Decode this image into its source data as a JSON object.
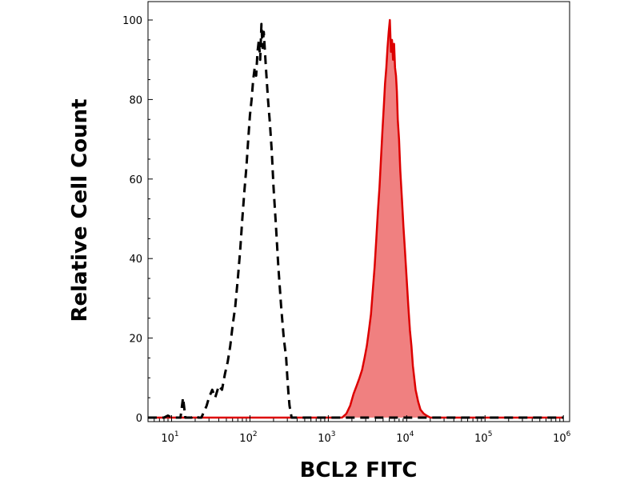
{
  "chart_data": {
    "type": "area",
    "title": "",
    "xlabel": "BCL2  FITC",
    "ylabel": "Relative Cell Count",
    "xscale": "log",
    "xlim": [
      5,
      1200000
    ],
    "ylim": [
      0,
      100
    ],
    "grid": false,
    "x_ticks": [
      {
        "base": "10",
        "exp": "1",
        "value": 10
      },
      {
        "base": "10",
        "exp": "2",
        "value": 100
      },
      {
        "base": "10",
        "exp": "3",
        "value": 1000
      },
      {
        "base": "10",
        "exp": "4",
        "value": 10000
      },
      {
        "base": "10",
        "exp": "5",
        "value": 100000
      },
      {
        "base": "10",
        "exp": "6",
        "value": 1000000
      }
    ],
    "y_ticks": [
      "0",
      "20",
      "40",
      "60",
      "80",
      "100"
    ],
    "series": [
      {
        "style": "dashed",
        "color": "#000000",
        "fill": "none",
        "x": [
          5,
          8,
          9,
          10,
          13,
          14,
          15,
          18,
          20,
          22,
          24,
          26,
          28,
          30,
          33,
          36,
          40,
          44,
          48,
          52,
          56,
          60,
          65,
          70,
          75,
          80,
          85,
          90,
          95,
          100,
          105,
          110,
          115,
          120,
          125,
          130,
          135,
          140,
          145,
          150,
          160,
          170,
          180,
          190,
          200,
          215,
          230,
          250,
          270,
          290,
          300,
          310,
          320,
          330,
          340,
          360,
          400,
          1000000
        ],
        "y": [
          0,
          0,
          0.5,
          0,
          0,
          5,
          0,
          0,
          0.5,
          0,
          0,
          1.5,
          3,
          5,
          7,
          5,
          8,
          7,
          11,
          14,
          18,
          23,
          28,
          35,
          42,
          50,
          57,
          63,
          70,
          76,
          80,
          85,
          88,
          86,
          92,
          95,
          90,
          99,
          93,
          97,
          88,
          80,
          74,
          67,
          58,
          48,
          38,
          28,
          20,
          15,
          10,
          6,
          3,
          1.5,
          0,
          0,
          0,
          0
        ]
      },
      {
        "style": "solid",
        "color": "#dd0000",
        "fill": "#f08080",
        "x": [
          5,
          1500,
          1700,
          1900,
          2100,
          2300,
          2500,
          2700,
          2900,
          3100,
          3300,
          3500,
          3700,
          3900,
          4100,
          4300,
          4500,
          4700,
          4900,
          5100,
          5300,
          5500,
          5700,
          5900,
          6100,
          6300,
          6500,
          6700,
          6900,
          7100,
          7300,
          7500,
          7700,
          8000,
          8300,
          8700,
          9100,
          9500,
          10000,
          10500,
          11000,
          11500,
          12000,
          12500,
          13000,
          14000,
          15000,
          16500,
          18000,
          20000,
          25000,
          1000000
        ],
        "y": [
          0,
          0,
          1,
          3,
          6,
          8,
          10,
          12,
          15,
          18,
          22,
          26,
          32,
          38,
          45,
          52,
          58,
          65,
          72,
          78,
          84,
          88,
          93,
          97,
          100,
          92,
          95,
          90,
          94,
          88,
          86,
          82,
          75,
          70,
          62,
          55,
          48,
          42,
          35,
          28,
          22,
          18,
          13,
          10,
          7,
          4,
          2,
          1,
          0.5,
          0,
          0,
          0
        ]
      }
    ]
  }
}
